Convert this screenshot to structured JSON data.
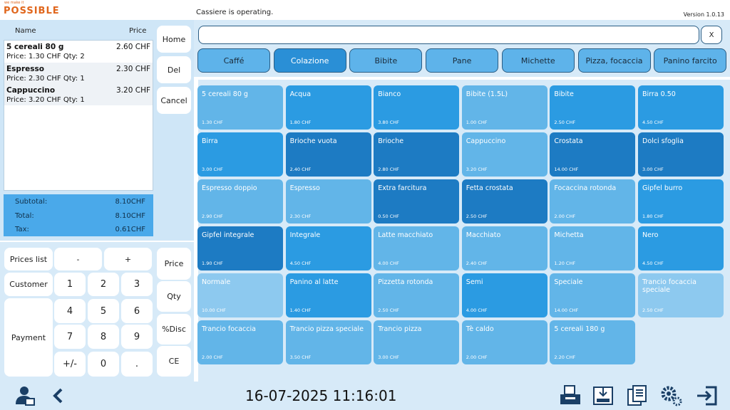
{
  "header": {
    "logo_tagline": "we make it",
    "logo": "POSSIBLE",
    "status": "Cassiere is operating.",
    "version": "Version 1.0.13"
  },
  "order": {
    "columns": [
      "Name",
      "Price"
    ],
    "items": [
      {
        "name": "5 cereali 80 g",
        "total": "2.60  CHF",
        "detail": "Price: 1.30 CHF  Qty: 2"
      },
      {
        "name": "Espresso",
        "total": "2.30  CHF",
        "detail": "Price: 2.30 CHF  Qty: 1"
      },
      {
        "name": "Cappuccino",
        "total": "3.20  CHF",
        "detail": "Price: 3.20 CHF  Qty: 1"
      }
    ],
    "totals": [
      {
        "label": "Subtotal:",
        "value": "8.10CHF"
      },
      {
        "label": "Total:",
        "value": "8.10CHF"
      },
      {
        "label": "Tax:",
        "value": "0.61CHF"
      }
    ]
  },
  "side_buttons": [
    "Home",
    "Del",
    "Cancel"
  ],
  "keypad": {
    "functions": [
      "Prices list",
      "Customer",
      "Payment"
    ],
    "keys": [
      "-",
      "+",
      "1",
      "2",
      "3",
      "4",
      "5",
      "6",
      "7",
      "8",
      "9",
      "+/-",
      "0",
      "."
    ],
    "modifiers": [
      "Price",
      "Qty",
      "%Disc",
      "CE"
    ]
  },
  "search": {
    "clear": "X"
  },
  "categories": {
    "selected": 1,
    "items": [
      "Caffé",
      "Colazione",
      "Bibite",
      "Pane",
      "Michette",
      "Pizza, focaccia",
      "Panino farcito"
    ]
  },
  "products": [
    {
      "name": "5 cereali 80 g",
      "price": "1.30 CHF",
      "shade": "light"
    },
    {
      "name": "Acqua",
      "price": "1.80 CHF",
      "shade": "mid"
    },
    {
      "name": "Bianco",
      "price": "3.80 CHF",
      "shade": "mid"
    },
    {
      "name": "Bibite (1.5L)",
      "price": "1.00 CHF",
      "shade": "light"
    },
    {
      "name": "Bibite",
      "price": "2.50 CHF",
      "shade": "mid"
    },
    {
      "name": "Birra 0.50",
      "price": "4.50 CHF",
      "shade": "mid"
    },
    {
      "name": "Birra",
      "price": "3.00 CHF",
      "shade": "mid"
    },
    {
      "name": "Brioche vuota",
      "price": "2.40 CHF",
      "shade": "dark"
    },
    {
      "name": "Brioche",
      "price": "2.80 CHF",
      "shade": "dark"
    },
    {
      "name": "Cappuccino",
      "price": "3.20 CHF",
      "shade": "light"
    },
    {
      "name": "Crostata",
      "price": "14.00 CHF",
      "shade": "dark"
    },
    {
      "name": "Dolci sfoglia",
      "price": "3.00 CHF",
      "shade": "dark"
    },
    {
      "name": "Espresso doppio",
      "price": "2.90 CHF",
      "shade": "light"
    },
    {
      "name": "Espresso",
      "price": "2.30 CHF",
      "shade": "light"
    },
    {
      "name": "Extra farcitura",
      "price": "0.50 CHF",
      "shade": "dark"
    },
    {
      "name": "Fetta crostata",
      "price": "2.50 CHF",
      "shade": "dark"
    },
    {
      "name": "Focaccina rotonda",
      "price": "2.00 CHF",
      "shade": "light"
    },
    {
      "name": "Gipfel burro",
      "price": "1.80 CHF",
      "shade": "mid"
    },
    {
      "name": "Gipfel integrale",
      "price": "1.90 CHF",
      "shade": "dark"
    },
    {
      "name": "Integrale",
      "price": "4.50 CHF",
      "shade": "mid"
    },
    {
      "name": "Latte macchiato",
      "price": "4.00 CHF",
      "shade": "light"
    },
    {
      "name": "Macchiato",
      "price": "2.40 CHF",
      "shade": "light"
    },
    {
      "name": "Michetta",
      "price": "1.20 CHF",
      "shade": "light"
    },
    {
      "name": "Nero",
      "price": "4.50 CHF",
      "shade": "mid"
    },
    {
      "name": "Normale",
      "price": "10.00 CHF",
      "shade": "pale"
    },
    {
      "name": "Panino al latte",
      "price": "1.40 CHF",
      "shade": "mid"
    },
    {
      "name": "Pizzetta rotonda",
      "price": "2.50 CHF",
      "shade": "light"
    },
    {
      "name": "Semi",
      "price": "4.00 CHF",
      "shade": "mid"
    },
    {
      "name": "Speciale",
      "price": "14.00 CHF",
      "shade": "light"
    },
    {
      "name": "Trancio focaccia speciale",
      "price": "2.50 CHF",
      "shade": "pale"
    },
    {
      "name": "Trancio focaccia",
      "price": "2.00 CHF",
      "shade": "light"
    },
    {
      "name": "Trancio pizza speciale",
      "price": "3.50 CHF",
      "shade": "light"
    },
    {
      "name": "Trancio pizza",
      "price": "3.00 CHF",
      "shade": "light"
    },
    {
      "name": "Tè caldo",
      "price": "2.00 CHF",
      "shade": "light"
    },
    {
      "name": "5 cereali 180 g",
      "price": "2.20 CHF",
      "shade": "light"
    }
  ],
  "footer": {
    "datetime": "16-07-2025 11:16:01"
  }
}
